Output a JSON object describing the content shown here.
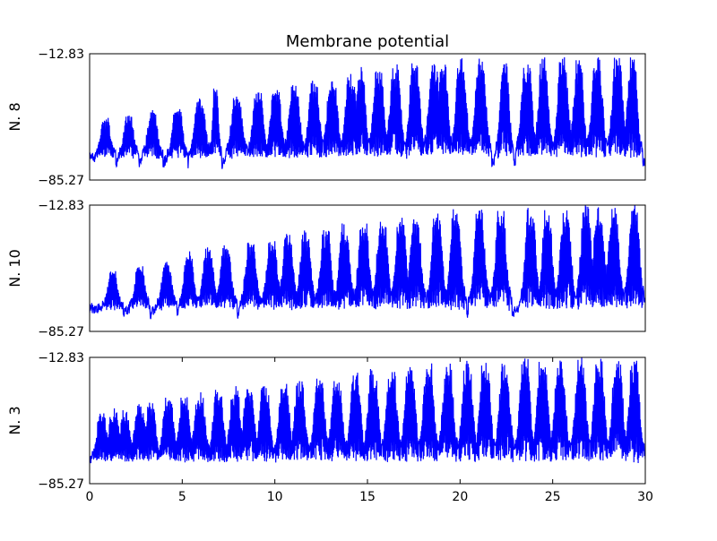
{
  "chart_data": {
    "type": "line",
    "title": "Membrane potential",
    "xlabel": "",
    "xlim": [
      0,
      30
    ],
    "xticks": [
      0,
      5,
      10,
      15,
      20,
      25,
      30
    ],
    "ylim": [
      -85.27,
      -12.83
    ],
    "yticks": [
      "-85.27",
      "-12.83"
    ],
    "grid": false,
    "line_color": "#0000ff",
    "panels": [
      {
        "ylabel": "N. 8",
        "ylim": [
          -85.27,
          -12.83
        ],
        "seed": 8,
        "bursts": [
          [
            0.85,
            0.5,
            -50
          ],
          [
            2.1,
            0.5,
            -48
          ],
          [
            3.4,
            0.5,
            -45
          ],
          [
            4.75,
            0.5,
            -42
          ],
          [
            5.95,
            0.55,
            -39
          ],
          [
            6.8,
            0.3,
            -32
          ],
          [
            7.95,
            0.55,
            -36
          ],
          [
            9.1,
            0.55,
            -34
          ],
          [
            10.05,
            0.55,
            -32
          ],
          [
            11.05,
            0.55,
            -30
          ],
          [
            12.1,
            0.55,
            -28
          ],
          [
            13.1,
            0.55,
            -26
          ],
          [
            14.1,
            0.55,
            -25
          ],
          [
            14.65,
            0.45,
            -20
          ],
          [
            15.6,
            0.55,
            -21
          ],
          [
            16.5,
            0.55,
            -20
          ],
          [
            17.55,
            0.55,
            -18
          ],
          [
            18.6,
            0.55,
            -17
          ],
          [
            19.1,
            0.45,
            -14
          ],
          [
            20.05,
            0.55,
            -16
          ],
          [
            21.1,
            0.55,
            -15
          ],
          [
            22.4,
            0.45,
            -15
          ],
          [
            23.6,
            0.55,
            -17
          ],
          [
            24.5,
            0.5,
            -15
          ],
          [
            25.55,
            0.55,
            -15
          ],
          [
            26.4,
            0.5,
            -15
          ],
          [
            27.4,
            0.55,
            -14
          ],
          [
            28.5,
            0.55,
            -14
          ],
          [
            29.3,
            0.5,
            -15
          ]
        ]
      },
      {
        "ylabel": "N. 10",
        "ylim": [
          -85.27,
          -12.83
        ],
        "seed": 10,
        "bursts": [
          [
            1.25,
            0.5,
            -50
          ],
          [
            2.7,
            0.5,
            -47
          ],
          [
            4.15,
            0.5,
            -44
          ],
          [
            5.35,
            0.5,
            -40
          ],
          [
            6.4,
            0.55,
            -37
          ],
          [
            7.35,
            0.55,
            -35
          ],
          [
            8.7,
            0.55,
            -34
          ],
          [
            9.85,
            0.55,
            -32
          ],
          [
            10.7,
            0.55,
            -30
          ],
          [
            11.65,
            0.55,
            -28
          ],
          [
            12.75,
            0.55,
            -26
          ],
          [
            13.75,
            0.55,
            -24
          ],
          [
            14.8,
            0.55,
            -22
          ],
          [
            15.8,
            0.55,
            -20
          ],
          [
            16.8,
            0.55,
            -19
          ],
          [
            17.6,
            0.55,
            -18
          ],
          [
            18.75,
            0.55,
            -17
          ],
          [
            19.75,
            0.55,
            -16
          ],
          [
            21.05,
            0.55,
            -15
          ],
          [
            22.2,
            0.55,
            -15
          ],
          [
            23.8,
            0.55,
            -15
          ],
          [
            24.7,
            0.5,
            -14
          ],
          [
            25.7,
            0.55,
            -14
          ],
          [
            26.8,
            0.55,
            -14
          ],
          [
            27.5,
            0.55,
            -13
          ],
          [
            28.3,
            0.55,
            -13
          ],
          [
            29.4,
            0.55,
            -13
          ]
        ]
      },
      {
        "ylabel": "N. 3",
        "ylim": [
          -85.27,
          -12.83
        ],
        "seed": 3,
        "bursts": [
          [
            0.65,
            0.5,
            -45
          ],
          [
            1.3,
            0.5,
            -42
          ],
          [
            1.9,
            0.5,
            -43
          ],
          [
            2.7,
            0.55,
            -40
          ],
          [
            3.3,
            0.5,
            -38
          ],
          [
            4.25,
            0.55,
            -36
          ],
          [
            5.1,
            0.55,
            -35
          ],
          [
            5.95,
            0.55,
            -34
          ],
          [
            6.95,
            0.55,
            -32
          ],
          [
            7.85,
            0.55,
            -30
          ],
          [
            8.6,
            0.55,
            -30
          ],
          [
            9.45,
            0.55,
            -28
          ],
          [
            10.5,
            0.55,
            -27
          ],
          [
            11.35,
            0.55,
            -26
          ],
          [
            12.4,
            0.55,
            -24
          ],
          [
            13.35,
            0.55,
            -23
          ],
          [
            14.35,
            0.55,
            -22
          ],
          [
            15.3,
            0.55,
            -20
          ],
          [
            16.3,
            0.55,
            -19
          ],
          [
            17.3,
            0.55,
            -17
          ],
          [
            18.3,
            0.55,
            -16
          ],
          [
            19.35,
            0.55,
            -15
          ],
          [
            20.4,
            0.55,
            -15
          ],
          [
            21.35,
            0.55,
            -14
          ],
          [
            22.4,
            0.55,
            -14
          ],
          [
            23.5,
            0.55,
            -14
          ],
          [
            24.45,
            0.55,
            -13
          ],
          [
            25.4,
            0.55,
            -13
          ],
          [
            26.5,
            0.55,
            -13
          ],
          [
            27.5,
            0.55,
            -13
          ],
          [
            28.5,
            0.55,
            -13
          ],
          [
            29.4,
            0.55,
            -14
          ]
        ]
      }
    ]
  }
}
